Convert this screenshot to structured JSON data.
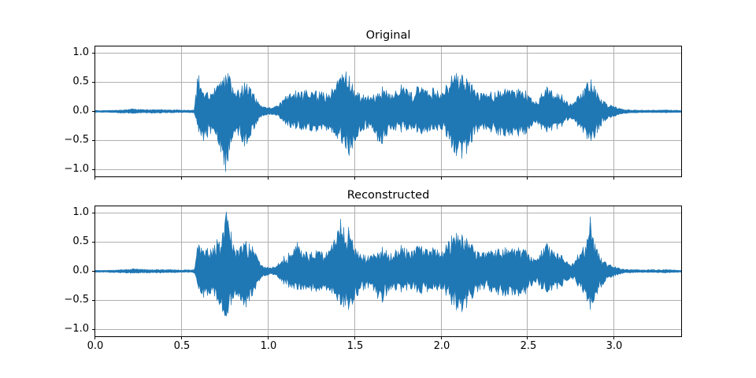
{
  "figure": {
    "background": "#ffffff",
    "line_color": "#1f77b4",
    "grid_color": "#b0b0b0",
    "spine_color": "#000000",
    "tick_color": "#000000"
  },
  "chart_data": [
    {
      "type": "line",
      "subtype": "audio-waveform",
      "title": "Original",
      "xlabel": "",
      "ylabel": "",
      "grid": true,
      "legend": false,
      "xlim": [
        0.0,
        3.39
      ],
      "ylim": [
        -1.12,
        1.12
      ],
      "x_ticks": [
        0.0,
        0.5,
        1.0,
        1.5,
        2.0,
        2.5,
        3.0
      ],
      "x_tick_labels": [],
      "y_ticks": [
        1.0,
        0.5,
        0.0,
        -0.5,
        -1.0
      ],
      "y_tick_labels": [
        "1.0",
        "0.5",
        "0.0",
        "−0.5",
        "−1.0"
      ],
      "line_color": "#1f77b4",
      "envelope": {
        "description": "amplitude envelope of waveform read from plot: [time_s, min_amplitude, max_amplitude]",
        "points": [
          [
            0.0,
            -0.02,
            0.02
          ],
          [
            0.08,
            -0.02,
            0.02
          ],
          [
            0.15,
            -0.03,
            0.03
          ],
          [
            0.22,
            -0.035,
            0.045
          ],
          [
            0.3,
            -0.03,
            0.035
          ],
          [
            0.38,
            -0.03,
            0.035
          ],
          [
            0.46,
            -0.025,
            0.03
          ],
          [
            0.54,
            -0.02,
            0.025
          ],
          [
            0.575,
            -0.03,
            0.03
          ],
          [
            0.59,
            -0.2,
            0.55
          ],
          [
            0.6,
            -0.35,
            0.63
          ],
          [
            0.615,
            -0.42,
            0.38
          ],
          [
            0.63,
            -0.52,
            0.3
          ],
          [
            0.65,
            -0.45,
            0.33
          ],
          [
            0.67,
            -0.38,
            0.3
          ],
          [
            0.69,
            -0.32,
            0.4
          ],
          [
            0.71,
            -0.5,
            0.45
          ],
          [
            0.73,
            -0.72,
            0.52
          ],
          [
            0.745,
            -0.9,
            0.58
          ],
          [
            0.755,
            -1.04,
            0.62
          ],
          [
            0.768,
            -0.88,
            0.66
          ],
          [
            0.78,
            -0.62,
            0.6
          ],
          [
            0.795,
            -0.45,
            0.42
          ],
          [
            0.81,
            -0.36,
            0.32
          ],
          [
            0.83,
            -0.42,
            0.38
          ],
          [
            0.85,
            -0.52,
            0.44
          ],
          [
            0.865,
            -0.6,
            0.5
          ],
          [
            0.88,
            -0.55,
            0.47
          ],
          [
            0.9,
            -0.42,
            0.4
          ],
          [
            0.92,
            -0.3,
            0.3
          ],
          [
            0.94,
            -0.18,
            0.18
          ],
          [
            0.96,
            -0.1,
            0.1
          ],
          [
            0.98,
            -0.07,
            0.08
          ],
          [
            1.01,
            -0.06,
            0.07
          ],
          [
            1.04,
            -0.06,
            0.08
          ],
          [
            1.07,
            -0.12,
            0.15
          ],
          [
            1.1,
            -0.22,
            0.26
          ],
          [
            1.13,
            -0.28,
            0.31
          ],
          [
            1.16,
            -0.3,
            0.36
          ],
          [
            1.19,
            -0.32,
            0.34
          ],
          [
            1.22,
            -0.31,
            0.37
          ],
          [
            1.25,
            -0.34,
            0.33
          ],
          [
            1.28,
            -0.35,
            0.36
          ],
          [
            1.31,
            -0.31,
            0.34
          ],
          [
            1.34,
            -0.33,
            0.31
          ],
          [
            1.37,
            -0.36,
            0.39
          ],
          [
            1.4,
            -0.46,
            0.52
          ],
          [
            1.43,
            -0.56,
            0.64
          ],
          [
            1.45,
            -0.63,
            0.69
          ],
          [
            1.47,
            -0.76,
            0.61
          ],
          [
            1.49,
            -0.62,
            0.46
          ],
          [
            1.52,
            -0.42,
            0.33
          ],
          [
            1.55,
            -0.33,
            0.29
          ],
          [
            1.58,
            -0.29,
            0.27
          ],
          [
            1.61,
            -0.33,
            0.29
          ],
          [
            1.635,
            -0.52,
            0.31
          ],
          [
            1.66,
            -0.56,
            0.43
          ],
          [
            1.685,
            -0.42,
            0.36
          ],
          [
            1.71,
            -0.31,
            0.29
          ],
          [
            1.74,
            -0.33,
            0.36
          ],
          [
            1.77,
            -0.36,
            0.46
          ],
          [
            1.8,
            -0.33,
            0.39
          ],
          [
            1.83,
            -0.31,
            0.33
          ],
          [
            1.86,
            -0.36,
            0.43
          ],
          [
            1.89,
            -0.39,
            0.41
          ],
          [
            1.92,
            -0.36,
            0.36
          ],
          [
            1.95,
            -0.31,
            0.41
          ],
          [
            1.98,
            -0.33,
            0.36
          ],
          [
            2.005,
            -0.31,
            0.31
          ],
          [
            2.03,
            -0.42,
            0.46
          ],
          [
            2.06,
            -0.62,
            0.61
          ],
          [
            2.09,
            -0.77,
            0.66
          ],
          [
            2.12,
            -0.81,
            0.63
          ],
          [
            2.15,
            -0.72,
            0.56
          ],
          [
            2.18,
            -0.52,
            0.46
          ],
          [
            2.21,
            -0.36,
            0.33
          ],
          [
            2.25,
            -0.31,
            0.31
          ],
          [
            2.29,
            -0.36,
            0.34
          ],
          [
            2.33,
            -0.41,
            0.36
          ],
          [
            2.37,
            -0.43,
            0.39
          ],
          [
            2.41,
            -0.41,
            0.37
          ],
          [
            2.45,
            -0.43,
            0.39
          ],
          [
            2.49,
            -0.39,
            0.36
          ],
          [
            2.52,
            -0.26,
            0.23
          ],
          [
            2.55,
            -0.19,
            0.17
          ],
          [
            2.58,
            -0.31,
            0.31
          ],
          [
            2.61,
            -0.36,
            0.43
          ],
          [
            2.64,
            -0.33,
            0.36
          ],
          [
            2.67,
            -0.31,
            0.31
          ],
          [
            2.7,
            -0.26,
            0.29
          ],
          [
            2.73,
            -0.16,
            0.16
          ],
          [
            2.76,
            -0.13,
            0.13
          ],
          [
            2.79,
            -0.26,
            0.26
          ],
          [
            2.82,
            -0.36,
            0.36
          ],
          [
            2.845,
            -0.48,
            0.5
          ],
          [
            2.865,
            -0.51,
            0.56
          ],
          [
            2.885,
            -0.46,
            0.44
          ],
          [
            2.905,
            -0.36,
            0.31
          ],
          [
            2.925,
            -0.26,
            0.21
          ],
          [
            2.95,
            -0.16,
            0.16
          ],
          [
            2.98,
            -0.11,
            0.11
          ],
          [
            3.01,
            -0.08,
            0.08
          ],
          [
            3.05,
            -0.04,
            0.04
          ],
          [
            3.12,
            -0.025,
            0.025
          ],
          [
            3.2,
            -0.02,
            0.025
          ],
          [
            3.3,
            -0.025,
            0.03
          ],
          [
            3.39,
            -0.02,
            0.02
          ]
        ]
      }
    },
    {
      "type": "line",
      "subtype": "audio-waveform",
      "title": "Reconstructed",
      "xlabel": "",
      "ylabel": "",
      "grid": true,
      "legend": false,
      "xlim": [
        0.0,
        3.39
      ],
      "ylim": [
        -1.12,
        1.12
      ],
      "x_ticks": [
        0.0,
        0.5,
        1.0,
        1.5,
        2.0,
        2.5,
        3.0
      ],
      "x_tick_labels": [
        "0.0",
        "0.5",
        "1.0",
        "1.5",
        "2.0",
        "2.5",
        "3.0"
      ],
      "y_ticks": [
        1.0,
        0.5,
        0.0,
        -0.5,
        -1.0
      ],
      "y_tick_labels": [
        "1.0",
        "0.5",
        "0.0",
        "−0.5",
        "−1.0"
      ],
      "line_color": "#1f77b4",
      "envelope": {
        "description": "amplitude envelope of waveform read from plot: [time_s, min_amplitude, max_amplitude]",
        "points": [
          [
            0.0,
            -0.02,
            0.02
          ],
          [
            0.08,
            -0.02,
            0.02
          ],
          [
            0.15,
            -0.03,
            0.03
          ],
          [
            0.22,
            -0.035,
            0.045
          ],
          [
            0.3,
            -0.03,
            0.035
          ],
          [
            0.38,
            -0.03,
            0.035
          ],
          [
            0.46,
            -0.025,
            0.03
          ],
          [
            0.54,
            -0.02,
            0.025
          ],
          [
            0.575,
            -0.03,
            0.03
          ],
          [
            0.59,
            -0.18,
            0.4
          ],
          [
            0.6,
            -0.3,
            0.46
          ],
          [
            0.615,
            -0.38,
            0.4
          ],
          [
            0.63,
            -0.46,
            0.34
          ],
          [
            0.65,
            -0.42,
            0.4
          ],
          [
            0.67,
            -0.38,
            0.38
          ],
          [
            0.69,
            -0.42,
            0.44
          ],
          [
            0.705,
            -0.5,
            0.55
          ],
          [
            0.72,
            -0.58,
            0.5
          ],
          [
            0.735,
            -0.68,
            0.62
          ],
          [
            0.75,
            -0.76,
            0.8
          ],
          [
            0.758,
            -0.78,
            1.05
          ],
          [
            0.77,
            -0.72,
            0.86
          ],
          [
            0.785,
            -0.6,
            0.72
          ],
          [
            0.8,
            -0.46,
            0.46
          ],
          [
            0.82,
            -0.4,
            0.37
          ],
          [
            0.84,
            -0.48,
            0.42
          ],
          [
            0.86,
            -0.58,
            0.48
          ],
          [
            0.875,
            -0.62,
            0.52
          ],
          [
            0.89,
            -0.52,
            0.48
          ],
          [
            0.91,
            -0.42,
            0.43
          ],
          [
            0.93,
            -0.3,
            0.3
          ],
          [
            0.95,
            -0.17,
            0.17
          ],
          [
            0.97,
            -0.09,
            0.09
          ],
          [
            1.0,
            -0.07,
            0.07
          ],
          [
            1.03,
            -0.06,
            0.08
          ],
          [
            1.06,
            -0.11,
            0.14
          ],
          [
            1.09,
            -0.22,
            0.26
          ],
          [
            1.12,
            -0.28,
            0.32
          ],
          [
            1.15,
            -0.3,
            0.38
          ],
          [
            1.17,
            -0.32,
            0.5
          ],
          [
            1.19,
            -0.32,
            0.36
          ],
          [
            1.22,
            -0.31,
            0.34
          ],
          [
            1.25,
            -0.34,
            0.33
          ],
          [
            1.28,
            -0.35,
            0.36
          ],
          [
            1.31,
            -0.31,
            0.34
          ],
          [
            1.34,
            -0.33,
            0.33
          ],
          [
            1.37,
            -0.38,
            0.46
          ],
          [
            1.4,
            -0.5,
            0.66
          ],
          [
            1.42,
            -0.58,
            0.9
          ],
          [
            1.44,
            -0.62,
            0.74
          ],
          [
            1.465,
            -0.66,
            0.76
          ],
          [
            1.49,
            -0.56,
            0.52
          ],
          [
            1.52,
            -0.42,
            0.34
          ],
          [
            1.55,
            -0.33,
            0.29
          ],
          [
            1.58,
            -0.29,
            0.27
          ],
          [
            1.61,
            -0.33,
            0.3
          ],
          [
            1.635,
            -0.48,
            0.32
          ],
          [
            1.66,
            -0.54,
            0.42
          ],
          [
            1.685,
            -0.42,
            0.36
          ],
          [
            1.71,
            -0.31,
            0.31
          ],
          [
            1.74,
            -0.33,
            0.37
          ],
          [
            1.77,
            -0.36,
            0.45
          ],
          [
            1.8,
            -0.33,
            0.39
          ],
          [
            1.83,
            -0.31,
            0.34
          ],
          [
            1.86,
            -0.36,
            0.43
          ],
          [
            1.89,
            -0.39,
            0.43
          ],
          [
            1.92,
            -0.36,
            0.37
          ],
          [
            1.95,
            -0.31,
            0.41
          ],
          [
            1.98,
            -0.33,
            0.37
          ],
          [
            2.005,
            -0.31,
            0.33
          ],
          [
            2.03,
            -0.42,
            0.46
          ],
          [
            2.06,
            -0.57,
            0.61
          ],
          [
            2.09,
            -0.67,
            0.66
          ],
          [
            2.12,
            -0.7,
            0.63
          ],
          [
            2.15,
            -0.62,
            0.56
          ],
          [
            2.18,
            -0.47,
            0.46
          ],
          [
            2.21,
            -0.36,
            0.34
          ],
          [
            2.25,
            -0.31,
            0.33
          ],
          [
            2.29,
            -0.36,
            0.36
          ],
          [
            2.33,
            -0.41,
            0.39
          ],
          [
            2.37,
            -0.43,
            0.41
          ],
          [
            2.41,
            -0.41,
            0.39
          ],
          [
            2.45,
            -0.43,
            0.41
          ],
          [
            2.49,
            -0.39,
            0.37
          ],
          [
            2.52,
            -0.26,
            0.25
          ],
          [
            2.55,
            -0.19,
            0.19
          ],
          [
            2.58,
            -0.31,
            0.36
          ],
          [
            2.61,
            -0.36,
            0.49
          ],
          [
            2.64,
            -0.33,
            0.37
          ],
          [
            2.67,
            -0.31,
            0.31
          ],
          [
            2.7,
            -0.26,
            0.27
          ],
          [
            2.73,
            -0.16,
            0.16
          ],
          [
            2.76,
            -0.13,
            0.13
          ],
          [
            2.79,
            -0.26,
            0.29
          ],
          [
            2.82,
            -0.36,
            0.41
          ],
          [
            2.845,
            -0.52,
            0.56
          ],
          [
            2.862,
            -0.66,
            0.94
          ],
          [
            2.88,
            -0.52,
            0.56
          ],
          [
            2.905,
            -0.38,
            0.36
          ],
          [
            2.925,
            -0.28,
            0.23
          ],
          [
            2.95,
            -0.17,
            0.16
          ],
          [
            2.98,
            -0.11,
            0.11
          ],
          [
            3.01,
            -0.08,
            0.08
          ],
          [
            3.05,
            -0.04,
            0.04
          ],
          [
            3.12,
            -0.025,
            0.03
          ],
          [
            3.2,
            -0.02,
            0.03
          ],
          [
            3.3,
            -0.03,
            0.035
          ],
          [
            3.39,
            -0.02,
            0.02
          ]
        ]
      }
    }
  ]
}
